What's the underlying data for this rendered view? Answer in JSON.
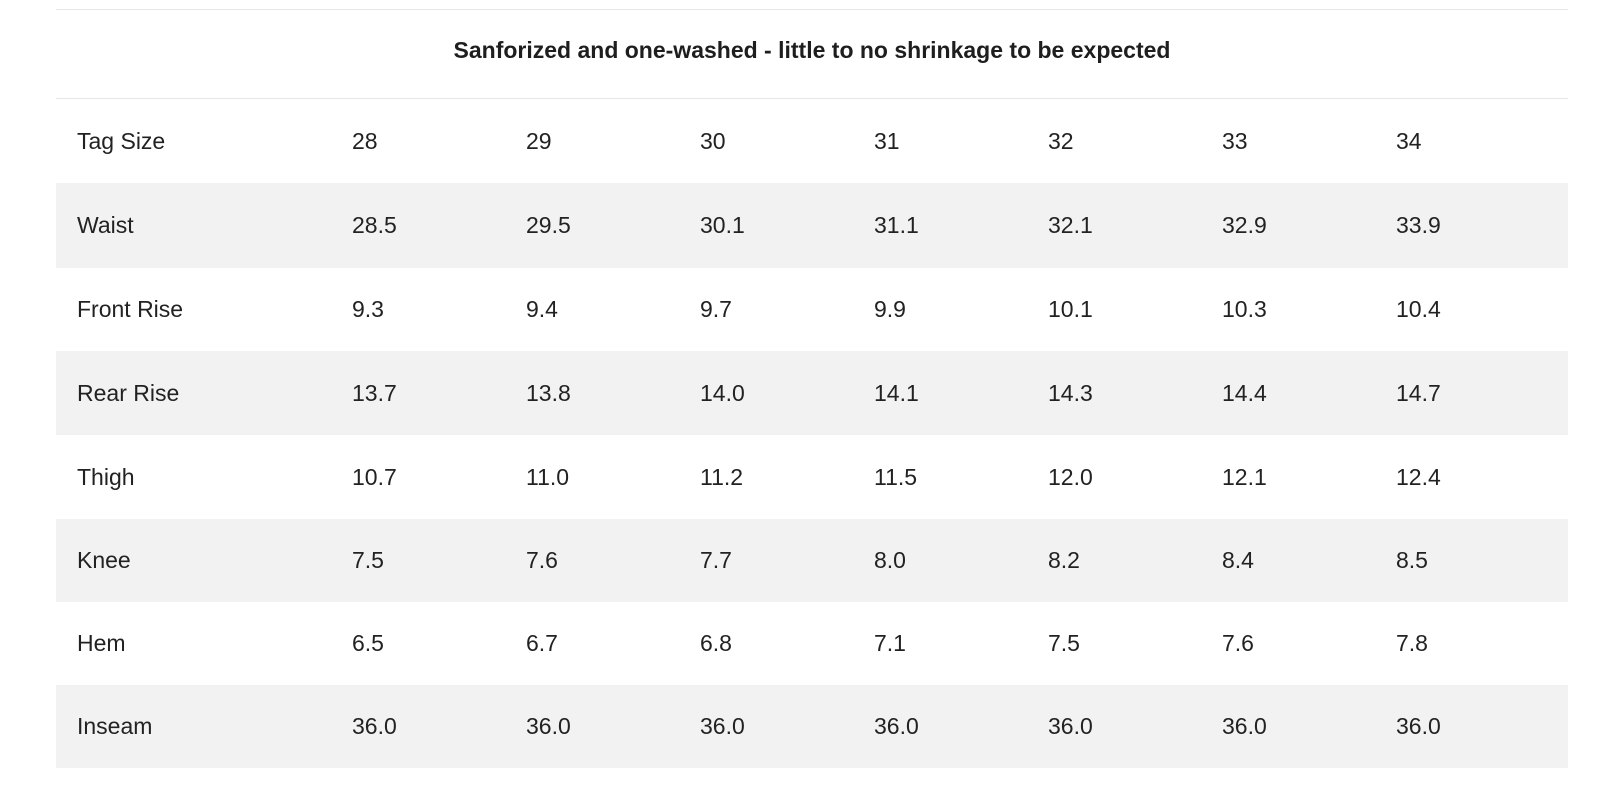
{
  "caption": "Sanforized and one-washed - little to no shrinkage to be expected",
  "table": {
    "rows": [
      {
        "label": "Tag Size",
        "values": [
          "28",
          "29",
          "30",
          "31",
          "32",
          "33",
          "34"
        ]
      },
      {
        "label": "Waist",
        "values": [
          "28.5",
          "29.5",
          "30.1",
          "31.1",
          "32.1",
          "32.9",
          "33.9"
        ]
      },
      {
        "label": "Front Rise",
        "values": [
          "9.3",
          "9.4",
          "9.7",
          "9.9",
          "10.1",
          "10.3",
          "10.4"
        ]
      },
      {
        "label": "Rear Rise",
        "values": [
          "13.7",
          "13.8",
          "14.0",
          "14.1",
          "14.3",
          "14.4",
          "14.7"
        ]
      },
      {
        "label": "Thigh",
        "values": [
          "10.7",
          "11.0",
          "11.2",
          "11.5",
          "12.0",
          "12.1",
          "12.4"
        ]
      },
      {
        "label": "Knee",
        "values": [
          "7.5",
          "7.6",
          "7.7",
          "8.0",
          "8.2",
          "8.4",
          "8.5"
        ]
      },
      {
        "label": "Hem",
        "values": [
          "6.5",
          "6.7",
          "6.8",
          "7.1",
          "7.5",
          "7.6",
          "7.8"
        ]
      },
      {
        "label": "Inseam",
        "values": [
          "36.0",
          "36.0",
          "36.0",
          "36.0",
          "36.0",
          "36.0",
          "36.0"
        ]
      }
    ]
  },
  "colors": {
    "stripe": "#f2f2f2",
    "text": "#222222",
    "rule": "#e6e6e6"
  }
}
